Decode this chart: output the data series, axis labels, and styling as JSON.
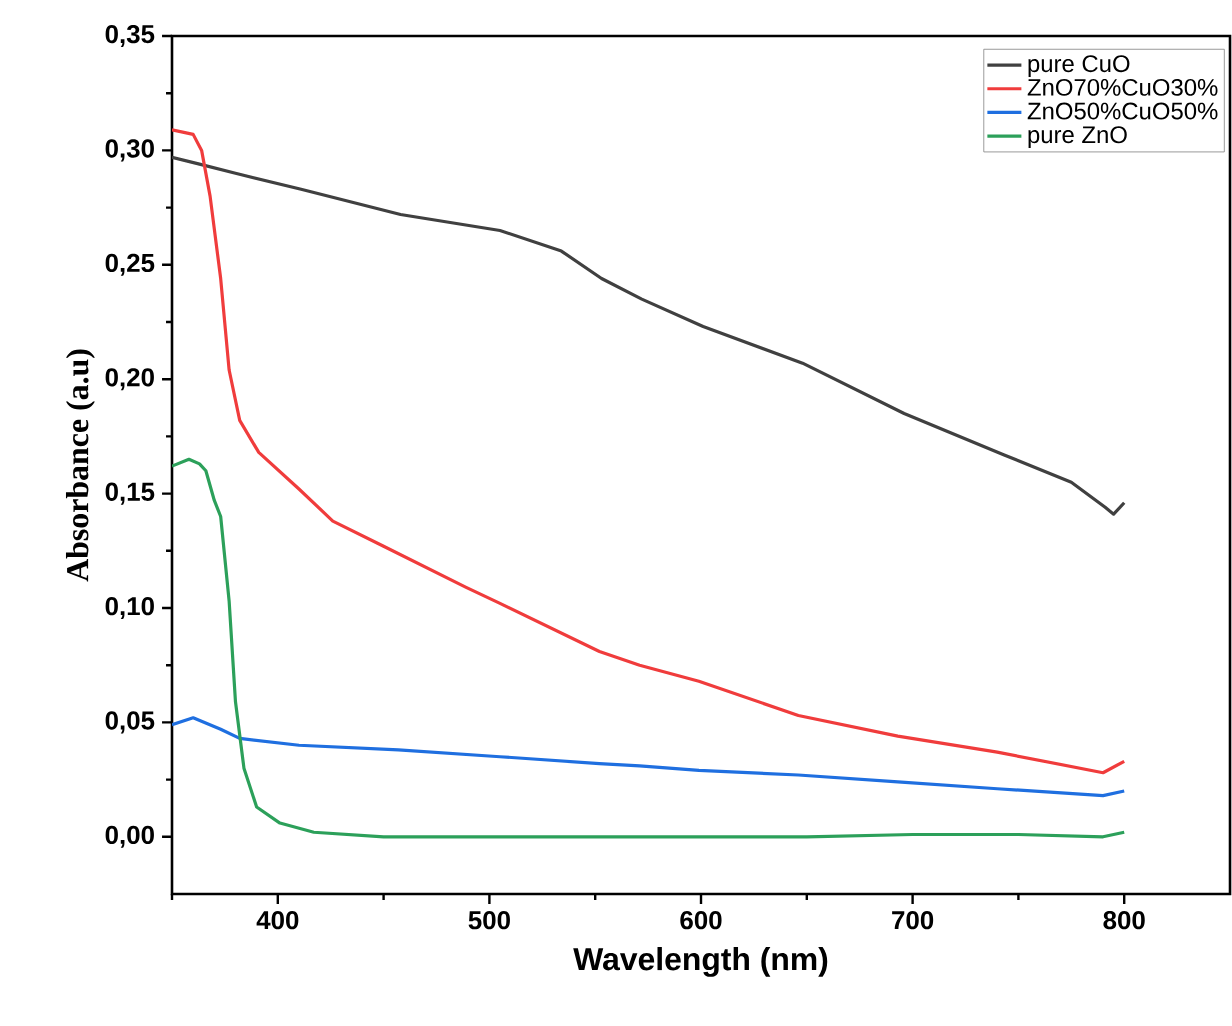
{
  "chart_data": {
    "type": "line",
    "xlabel": "Wavelength (nm)",
    "ylabel": "Absorbance (a.u)",
    "xlim": [
      350,
      850
    ],
    "ylim": [
      -0.025,
      0.35
    ],
    "xticks": [
      {
        "value": 350,
        "label": null
      },
      400,
      {
        "value": 450,
        "label": null
      },
      500,
      {
        "value": 550,
        "label": null
      },
      600,
      {
        "value": 650,
        "label": null
      },
      700,
      {
        "value": 750,
        "label": null
      },
      800
    ],
    "yticks": [
      {
        "value": 0,
        "label": "0,00"
      },
      {
        "value": 0.025,
        "label": null
      },
      {
        "value": 0.05,
        "label": "0,05"
      },
      {
        "value": 0.075,
        "label": null
      },
      {
        "value": 0.1,
        "label": "0,10"
      },
      {
        "value": 0.125,
        "label": null
      },
      {
        "value": 0.15,
        "label": "0,15"
      },
      {
        "value": 0.175,
        "label": null
      },
      {
        "value": 0.2,
        "label": "0,20"
      },
      {
        "value": 0.225,
        "label": null
      },
      {
        "value": 0.25,
        "label": "0,25"
      },
      {
        "value": 0.275,
        "label": null
      },
      {
        "value": 0.3,
        "label": "0,30"
      },
      {
        "value": 0.325,
        "label": null
      },
      {
        "value": 0.35,
        "label": "0,35"
      }
    ],
    "legend": "top right",
    "grid": false,
    "marker": "none",
    "line_style": "solid",
    "series": [
      {
        "name": "pure CuO",
        "color": "#404040",
        "x": [
          350,
          363,
          380,
          411,
          458,
          505,
          534,
          553,
          572,
          601,
          648,
          696,
          743,
          775,
          791,
          795,
          800
        ],
        "values": [
          0.297,
          0.294,
          0.29,
          0.283,
          0.272,
          0.265,
          0.256,
          0.244,
          0.235,
          0.223,
          0.207,
          0.185,
          0.167,
          0.155,
          0.144,
          0.141,
          0.146
        ]
      },
      {
        "name": "ZnO70%CuO30%",
        "color": "#f03c3c",
        "x": [
          350,
          360,
          364,
          368,
          373,
          377,
          382,
          391,
          410,
          426,
          450,
          489,
          505,
          552,
          571,
          599,
          646,
          693,
          740,
          790,
          800
        ],
        "values": [
          0.309,
          0.307,
          0.3,
          0.28,
          0.244,
          0.204,
          0.182,
          0.168,
          0.152,
          0.138,
          0.127,
          0.109,
          0.102,
          0.081,
          0.075,
          0.068,
          0.053,
          0.044,
          0.037,
          0.028,
          0.033
        ]
      },
      {
        "name": "ZnO50%CuO50%",
        "color": "#1f6fe0",
        "x": [
          350,
          360,
          373,
          382,
          410,
          457,
          505,
          552,
          571,
          599,
          646,
          693,
          740,
          790,
          800
        ],
        "values": [
          0.049,
          0.052,
          0.047,
          0.043,
          0.04,
          0.038,
          0.035,
          0.032,
          0.031,
          0.029,
          0.027,
          0.024,
          0.021,
          0.018,
          0.02
        ]
      },
      {
        "name": "pure ZnO",
        "color": "#2ca05a",
        "x": [
          350,
          358,
          363,
          366,
          370,
          373,
          377,
          380,
          384,
          390,
          401,
          417,
          450,
          500,
          550,
          600,
          650,
          700,
          750,
          790,
          800
        ],
        "values": [
          0.162,
          0.165,
          0.163,
          0.16,
          0.147,
          0.14,
          0.103,
          0.059,
          0.03,
          0.013,
          0.006,
          0.002,
          0.0,
          0.0,
          0.0,
          0.0,
          0.0,
          0.001,
          0.001,
          0.0,
          0.002
        ]
      }
    ]
  }
}
